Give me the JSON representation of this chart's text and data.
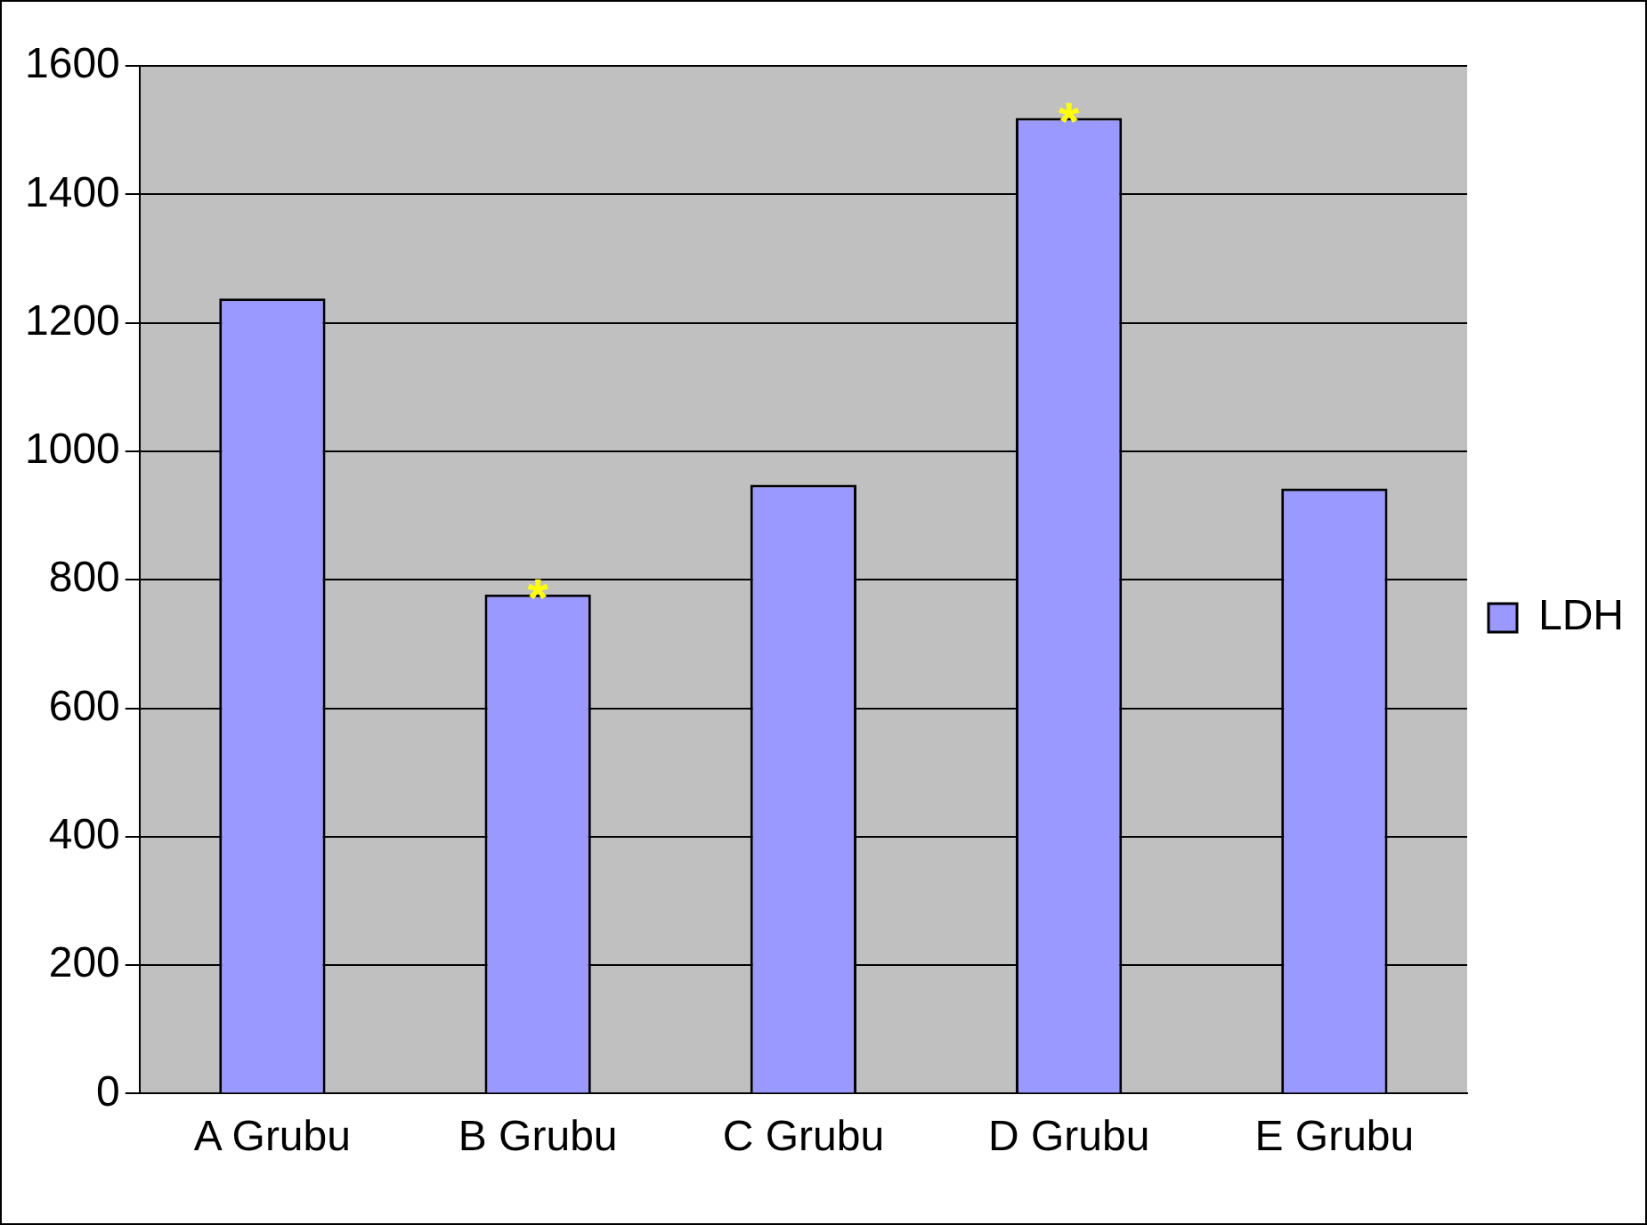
{
  "chart_data": {
    "type": "bar",
    "categories": [
      "A Grubu",
      "B Grubu",
      "C Grubu",
      "D Grubu",
      "E Grubu"
    ],
    "series": [
      {
        "name": "LDH",
        "color": "#9999ff",
        "values": [
          1238,
          777,
          948,
          1519,
          942
        ]
      }
    ],
    "ylim": [
      0,
      1600
    ],
    "yticks": [
      0,
      200,
      400,
      600,
      800,
      1000,
      1200,
      1400,
      1600
    ],
    "grid": "y",
    "legend": "right",
    "annotations": [
      {
        "text": "*",
        "x": "B Grubu",
        "y": 777
      },
      {
        "text": "*",
        "x": "D Grubu",
        "y": 1519
      }
    ]
  }
}
